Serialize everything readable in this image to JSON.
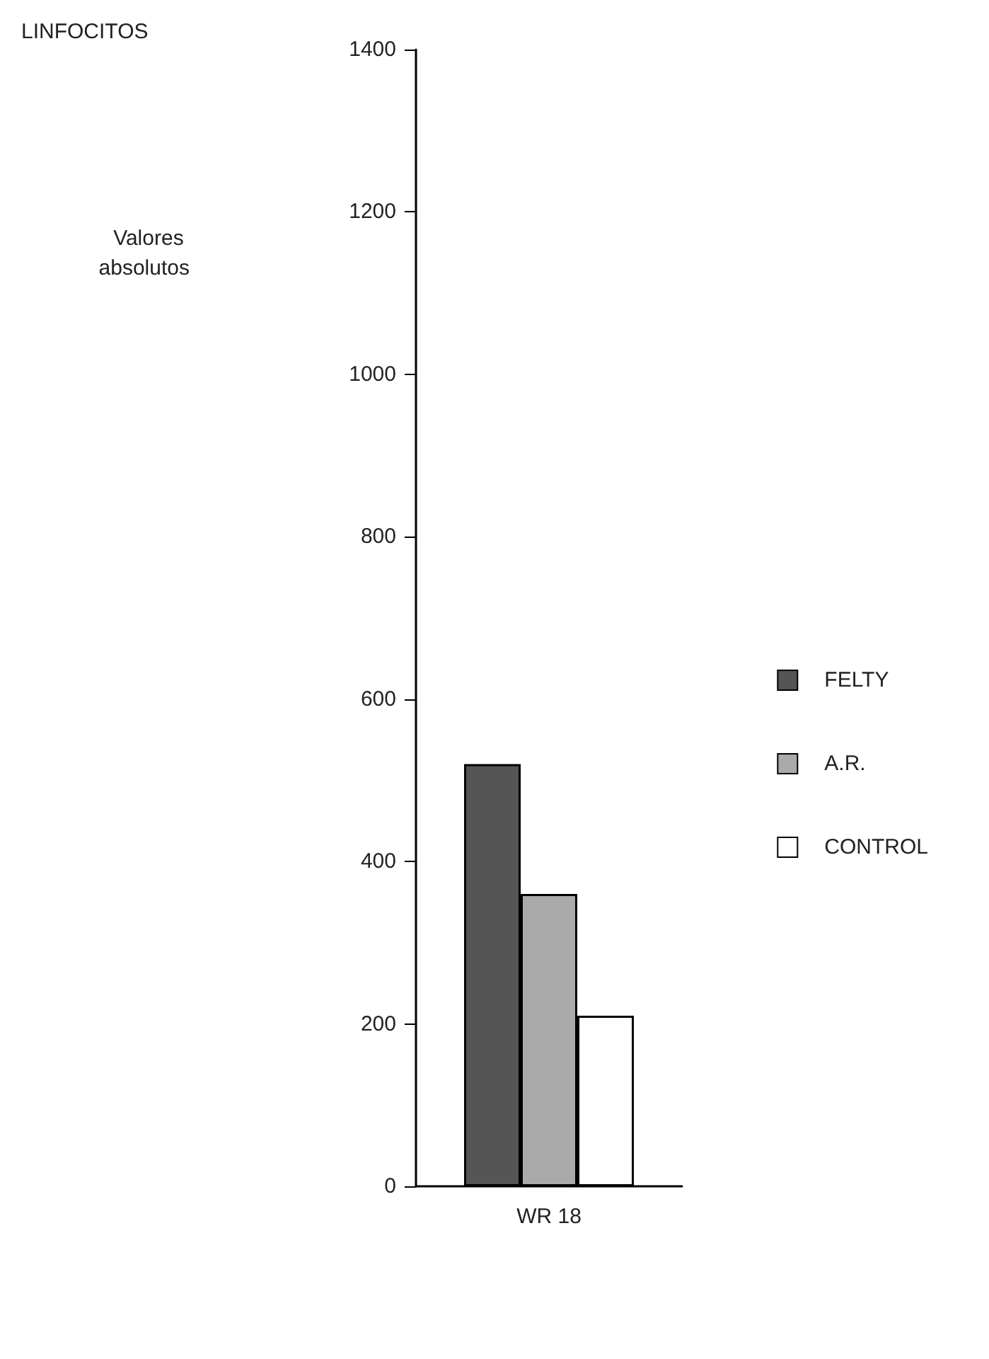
{
  "chart_data": {
    "type": "bar",
    "title": "LINFOCITOS",
    "annotations": [
      "Valores absolutos"
    ],
    "categories": [
      "WR 18"
    ],
    "series": [
      {
        "name": "FELTY",
        "color": "#555555",
        "values": [
          520
        ]
      },
      {
        "name": "A.R.",
        "color": "#aaaaaa",
        "values": [
          360
        ]
      },
      {
        "name": "CONTROL",
        "color": "#ffffff",
        "values": [
          210
        ]
      }
    ],
    "ylim": [
      0,
      1400
    ],
    "yticks": [
      0,
      200,
      400,
      600,
      800,
      1000,
      1200,
      1400
    ],
    "grid": false,
    "legend": "right"
  }
}
